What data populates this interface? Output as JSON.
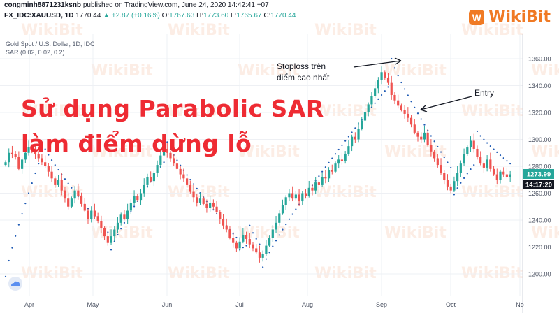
{
  "header": {
    "publisher": "congminh8871231ksnb",
    "published_text": "published on TradingView.com, June 24, 2020 14:42:41 +07",
    "symbol": "FX_IDC:XAUUSD, 1D",
    "last": "1770.44",
    "change_arrow": "▲",
    "change": "+2.87 (+0.16%)",
    "o_label": "O:",
    "o_value": "1767.63",
    "h_label": "H:",
    "h_value": "1773.60",
    "l_label": "L:",
    "l_value": "1765.67",
    "c_label": "C:",
    "c_value": "1770.44"
  },
  "series_label": "Gold Spot / U.S. Dollar, 1D, IDC",
  "indicator_label": "SAR (0.02, 0.02, 0.2)",
  "title_line1": "Sử dụng Parabolic SAR",
  "title_line2": "làm điểm dừng lỗ",
  "logo": {
    "text": "WikiBit",
    "mark": "W"
  },
  "watermark": "WikiBit",
  "colors": {
    "up": "#26a69a",
    "down": "#ef5350",
    "sar": "#1e5ab4",
    "title": "#ee2b33",
    "brand": "#f07a24",
    "price_label": "#26a69a",
    "time_label": "#131722"
  },
  "chart_data": {
    "type": "candlestick",
    "ylim": [
      1190,
      1370
    ],
    "y_ticks": [
      "1360.00",
      "1340.00",
      "1320.00",
      "1300.00",
      "1280.00",
      "1260.00",
      "1240.00",
      "1220.00",
      "1200.00"
    ],
    "x_ticks": [
      "Apr",
      "May",
      "Jun",
      "Jul",
      "Aug",
      "Sep",
      "Oct",
      "No"
    ],
    "price_label": "1273.99",
    "time_label": "14:17:20",
    "annotations": [
      {
        "text_line1": "Stoploss trên",
        "text_line2": "điểm cao nhất"
      },
      {
        "text": "Entry"
      }
    ],
    "close": [
      1283,
      1290,
      1289,
      1287,
      1278,
      1285,
      1290,
      1294,
      1291,
      1289,
      1286,
      1283,
      1280,
      1276,
      1271,
      1266,
      1270,
      1262,
      1256,
      1250,
      1256,
      1262,
      1258,
      1252,
      1247,
      1241,
      1247,
      1243,
      1239,
      1234,
      1228,
      1223,
      1228,
      1233,
      1238,
      1244,
      1241,
      1247,
      1253,
      1258,
      1255,
      1260,
      1266,
      1272,
      1269,
      1275,
      1281,
      1288,
      1293,
      1290,
      1286,
      1282,
      1278,
      1274,
      1271,
      1266,
      1261,
      1257,
      1253,
      1256,
      1252,
      1249,
      1253,
      1250,
      1246,
      1241,
      1236,
      1233,
      1227,
      1223,
      1219,
      1224,
      1229,
      1226,
      1222,
      1219,
      1216,
      1212,
      1215,
      1221,
      1227,
      1233,
      1238,
      1245,
      1251,
      1257,
      1260,
      1256,
      1259,
      1254,
      1260,
      1258,
      1264,
      1262,
      1268,
      1266,
      1272,
      1271,
      1277,
      1276,
      1282,
      1285,
      1284,
      1289,
      1295,
      1302,
      1300,
      1308,
      1314,
      1320,
      1326,
      1332,
      1338,
      1344,
      1350,
      1346,
      1342,
      1333,
      1329,
      1325,
      1322,
      1319,
      1316,
      1311,
      1305,
      1302,
      1300,
      1305,
      1296,
      1291,
      1286,
      1281,
      1275,
      1270,
      1265,
      1262,
      1269,
      1275,
      1282,
      1289,
      1294,
      1299,
      1293,
      1287,
      1282,
      1279,
      1285,
      1278,
      1274,
      1270,
      1276,
      1274,
      1272,
      1274
    ],
    "sar": [
      {
        "from": 0,
        "to": 10,
        "start": 1198,
        "end": 1282
      },
      {
        "from": 11,
        "to": 31,
        "start": 1298,
        "end": 1231
      },
      {
        "from": 32,
        "to": 48,
        "start": 1218,
        "end": 1283
      },
      {
        "from": 49,
        "to": 70,
        "start": 1298,
        "end": 1227
      },
      {
        "from": 71,
        "to": 73,
        "start": 1218,
        "end": 1221
      },
      {
        "from": 74,
        "to": 77,
        "start": 1236,
        "end": 1222
      },
      {
        "from": 78,
        "to": 116,
        "start": 1205,
        "end": 1339
      },
      {
        "from": 117,
        "to": 135,
        "start": 1360,
        "end": 1279
      },
      {
        "from": 136,
        "to": 142,
        "start": 1259,
        "end": 1281
      },
      {
        "from": 143,
        "to": 153,
        "start": 1306,
        "end": 1282
      }
    ]
  }
}
